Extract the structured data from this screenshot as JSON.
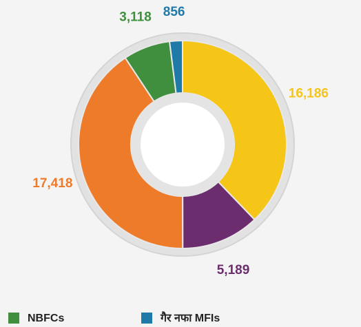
{
  "chart_data": {
    "type": "donut",
    "categories": [
      null,
      null,
      null,
      "NBFCs",
      "गैर नफा MFIs"
    ],
    "values": [
      16186,
      5189,
      17418,
      3118,
      856
    ],
    "value_labels": [
      "16,186",
      "5,189",
      "17,418",
      "3,118",
      "856"
    ],
    "colors": [
      "#f5c518",
      "#6b2d6e",
      "#ee7b2a",
      "#3f8f3e",
      "#1f7aa8"
    ]
  }
}
